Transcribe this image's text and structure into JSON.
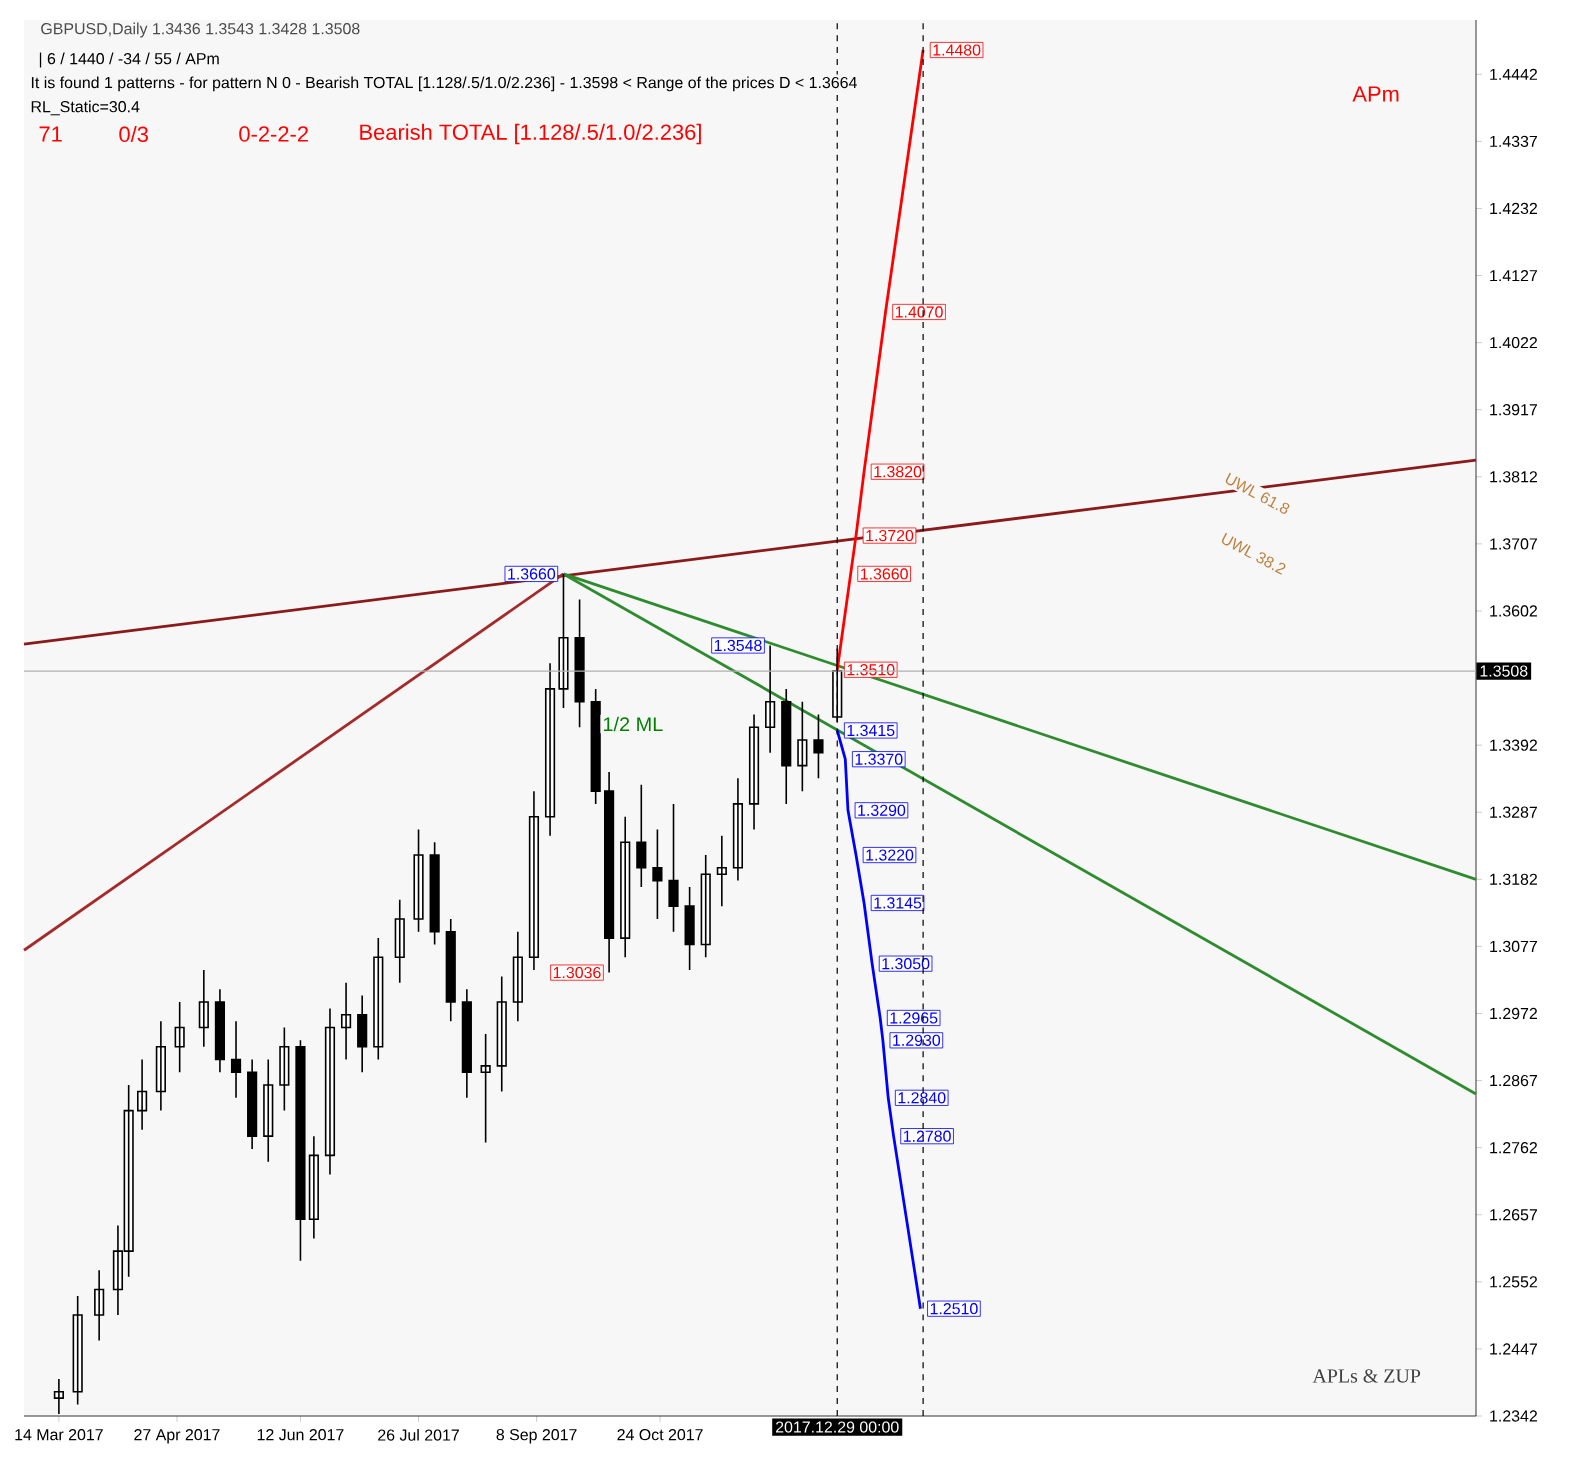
{
  "chart_data": {
    "type": "candlestick",
    "title": "GBPUSD,Daily 1.3436 1.3543 1.3428 1.3508",
    "color": "#000000",
    "x": [
      "2017-03-14",
      "2017-03-21",
      "2017-03-29",
      "2017-04-05",
      "2017-04-09",
      "2017-04-14",
      "2017-04-21",
      "2017-04-28",
      "2017-05-07",
      "2017-05-13",
      "2017-05-19",
      "2017-05-25",
      "2017-05-31",
      "2017-06-06",
      "2017-06-12",
      "2017-06-17",
      "2017-06-23",
      "2017-06-29",
      "2017-07-05",
      "2017-07-11",
      "2017-07-19",
      "2017-07-26",
      "2017-08-01",
      "2017-08-07",
      "2017-08-13",
      "2017-08-20",
      "2017-08-26",
      "2017-09-01",
      "2017-09-07",
      "2017-09-13",
      "2017-09-18",
      "2017-09-24",
      "2017-09-30",
      "2017-10-05",
      "2017-10-11",
      "2017-10-17",
      "2017-10-23",
      "2017-10-29",
      "2017-11-04",
      "2017-11-10",
      "2017-11-16",
      "2017-11-22",
      "2017-11-28",
      "2017-12-04",
      "2017-12-10",
      "2017-12-16",
      "2017-12-22",
      "2017-12-29"
    ],
    "ohlc": [
      [
        1.237,
        1.24,
        1.2345,
        1.238
      ],
      [
        1.238,
        1.253,
        1.236,
        1.25
      ],
      [
        1.25,
        1.257,
        1.246,
        1.254
      ],
      [
        1.254,
        1.264,
        1.25,
        1.26
      ],
      [
        1.26,
        1.286,
        1.256,
        1.282
      ],
      [
        1.282,
        1.29,
        1.279,
        1.285
      ],
      [
        1.285,
        1.296,
        1.282,
        1.292
      ],
      [
        1.292,
        1.299,
        1.288,
        1.295
      ],
      [
        1.295,
        1.304,
        1.292,
        1.299
      ],
      [
        1.299,
        1.301,
        1.288,
        1.29
      ],
      [
        1.29,
        1.296,
        1.284,
        1.288
      ],
      [
        1.288,
        1.29,
        1.276,
        1.278
      ],
      [
        1.278,
        1.29,
        1.274,
        1.286
      ],
      [
        1.286,
        1.295,
        1.282,
        1.292
      ],
      [
        1.292,
        1.293,
        1.2585,
        1.265
      ],
      [
        1.265,
        1.278,
        1.262,
        1.275
      ],
      [
        1.275,
        1.298,
        1.272,
        1.295
      ],
      [
        1.295,
        1.302,
        1.29,
        1.297
      ],
      [
        1.297,
        1.3,
        1.288,
        1.292
      ],
      [
        1.292,
        1.309,
        1.29,
        1.306
      ],
      [
        1.306,
        1.315,
        1.302,
        1.312
      ],
      [
        1.312,
        1.326,
        1.31,
        1.322
      ],
      [
        1.322,
        1.324,
        1.308,
        1.31
      ],
      [
        1.31,
        1.312,
        1.296,
        1.299
      ],
      [
        1.299,
        1.301,
        1.284,
        1.288
      ],
      [
        1.288,
        1.294,
        1.277,
        1.289
      ],
      [
        1.289,
        1.303,
        1.285,
        1.299
      ],
      [
        1.299,
        1.31,
        1.296,
        1.306
      ],
      [
        1.306,
        1.332,
        1.304,
        1.328
      ],
      [
        1.328,
        1.352,
        1.325,
        1.348
      ],
      [
        1.348,
        1.366,
        1.345,
        1.356
      ],
      [
        1.356,
        1.362,
        1.342,
        1.346
      ],
      [
        1.346,
        1.348,
        1.33,
        1.332
      ],
      [
        1.332,
        1.335,
        1.3036,
        1.309
      ],
      [
        1.309,
        1.328,
        1.306,
        1.324
      ],
      [
        1.324,
        1.333,
        1.317,
        1.32
      ],
      [
        1.32,
        1.326,
        1.312,
        1.318
      ],
      [
        1.318,
        1.33,
        1.31,
        1.314
      ],
      [
        1.314,
        1.317,
        1.304,
        1.308
      ],
      [
        1.308,
        1.322,
        1.306,
        1.319
      ],
      [
        1.319,
        1.325,
        1.314,
        1.32
      ],
      [
        1.32,
        1.334,
        1.318,
        1.33
      ],
      [
        1.33,
        1.344,
        1.326,
        1.342
      ],
      [
        1.342,
        1.3548,
        1.338,
        1.346
      ],
      [
        1.346,
        1.348,
        1.33,
        1.336
      ],
      [
        1.336,
        1.346,
        1.332,
        1.34
      ],
      [
        1.34,
        1.344,
        1.334,
        1.338
      ],
      [
        1.3436,
        1.3543,
        1.3428,
        1.3508
      ]
    ],
    "series": [
      {
        "type": "line",
        "color": "#8b1a1a",
        "x": [
          "2017-03-01",
          "2018-08-24"
        ],
        "values": [
          1.355,
          1.3838
        ]
      },
      {
        "type": "line",
        "color": "#a52a2a",
        "x": [
          "2017-03-01",
          "2017-09-18"
        ],
        "values": [
          1.3071,
          1.366
        ]
      },
      {
        "type": "line",
        "color": "#2e8b2e",
        "x": [
          "2017-09-18",
          "2018-08-24"
        ],
        "values": [
          1.366,
          1.3182
        ]
      },
      {
        "type": "line",
        "color": "#2e8b2e",
        "x": [
          "2017-09-18",
          "2018-08-24"
        ],
        "values": [
          1.366,
          1.2846
        ]
      },
      {
        "type": "line",
        "color": "#ff0000",
        "x": [
          "2017-12-29",
          "2018-01-03",
          "2018-01-05",
          "2018-01-08",
          "2018-01-16",
          "2018-01-30"
        ],
        "values": [
          1.351,
          1.366,
          1.372,
          1.382,
          1.407,
          1.448
        ],
        "value_labels": [
          "1.3510",
          "1.3660",
          "1.3720",
          "1.3820",
          "1.4070",
          "1.4480"
        ]
      },
      {
        "type": "line",
        "color": "#0000ff",
        "x": [
          "2017-12-29",
          "2018-01-01",
          "2018-01-02",
          "2018-01-05",
          "2018-01-08",
          "2018-01-11",
          "2018-01-14",
          "2018-01-15",
          "2018-01-17",
          "2018-01-19",
          "2018-01-29"
        ],
        "values": [
          1.3415,
          1.337,
          1.329,
          1.322,
          1.3145,
          1.305,
          1.2965,
          1.293,
          1.284,
          1.278,
          1.251
        ],
        "value_labels": [
          "1.3415",
          "1.3370",
          "1.3290",
          "1.3220",
          "1.3145",
          "1.3050",
          "1.2965",
          "1.2930",
          "1.2840",
          "1.2780",
          "1.2510"
        ]
      }
    ],
    "ref_lines": [
      {
        "axis": "y",
        "value": 1.3508,
        "label": "1.3508",
        "color": "#b0b0b0",
        "line_style": "solid"
      },
      {
        "axis": "x",
        "value": "2017-12-29",
        "label": "2017.12.29 00:00",
        "color": "#000000",
        "line_style": "dashed"
      },
      {
        "axis": "x",
        "value": "2018-01-30",
        "color": "#000000",
        "line_style": "dashed"
      }
    ],
    "annotations": [
      "| 6 / 1440 / -34 / 55 / APm",
      "It is found 1 patterns  -  for pattern N 0 - Bearish TOTAL [1.128/.5/1.0/2.236] - 1.3598 < Range of the prices D < 1.3664",
      "RL_Static=30.4",
      "71",
      "0/3",
      "0-2-2-2",
      "Bearish TOTAL [1.128/.5/1.0/2.236]",
      "APm",
      "1/2 ML",
      "UWL 38.2",
      "UWL 61.8",
      "APLs & ZUP",
      {
        "text": "1.3660",
        "x": "2017-09-18",
        "y": 1.366
      },
      {
        "text": "1.3548",
        "x": "2017-12-04",
        "y": 1.3548
      },
      {
        "text": "1.3036",
        "x": "2017-10-05",
        "y": 1.3036
      }
    ],
    "xlim": [
      "2017-03-01",
      "2018-08-24"
    ],
    "ylim": [
      1.2342,
      1.4527
    ],
    "xticks": [
      {
        "value": "2017-03-14",
        "label": "14 Mar 2017"
      },
      {
        "value": "2017-04-27",
        "label": "27 Apr 2017"
      },
      {
        "value": "2017-06-12",
        "label": "12 Jun 2017"
      },
      {
        "value": "2017-07-26",
        "label": "26 Jul 2017"
      },
      {
        "value": "2017-09-08",
        "label": "8 Sep 2017"
      },
      {
        "value": "2017-10-24",
        "label": "24 Oct 2017"
      }
    ],
    "yticks": [
      1.2342,
      1.2447,
      1.2552,
      1.2657,
      1.2762,
      1.2867,
      1.2972,
      1.3077,
      1.3182,
      1.3287,
      1.3392,
      {
        "value": 1.3497,
        "label": null
      },
      1.3602,
      1.3707,
      1.3812,
      1.3917,
      1.4022,
      1.4127,
      1.4232,
      1.4337,
      1.4442
    ],
    "marker": "none",
    "line_style": "solid"
  }
}
